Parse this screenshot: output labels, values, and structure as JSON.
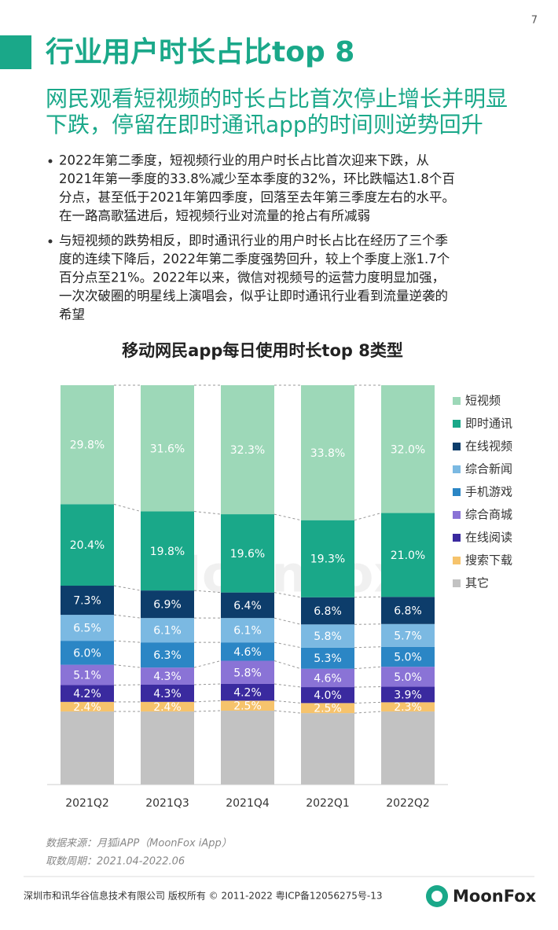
{
  "page_number": "7",
  "header": {
    "title": "行业用户时长占比top 8",
    "subtitle": [
      "网民观看短视频的时长占比首次停止增长并明显",
      "下跌，停留在即时通讯app的时间则逆势回升"
    ]
  },
  "bullets": [
    [
      "2022年第二季度，短视频行业的用户时长占比首次迎来下跌，从",
      "2021年第一季度的33.8%减少至本季度的32%，环比跌幅达1.8个百",
      "分点，甚至低于2021年第四季度，回落至去年第三季度左右的水平。",
      "在一路高歌猛进后，短视频行业对流量的抢占有所减弱"
    ],
    [
      "与短视频的跌势相反，即时通讯行业的用户时长占比在经历了三个季",
      "度的连续下降后，2022年第二季度强势回升，较上个季度上涨1.7个",
      "百分点至21%。2022年以来，微信对视频号的运营力度明显加强，",
      "一次次破圈的明星线上演唱会，似乎让即时通讯行业看到流量逆袭的",
      "希望"
    ]
  ],
  "chart_data": {
    "type": "stacked-bar",
    "title": "移动网民app每日使用时长top 8类型",
    "categories": [
      "2021Q2",
      "2021Q3",
      "2021Q4",
      "2022Q1",
      "2022Q2"
    ],
    "watermark": "MoonFox",
    "series": [
      {
        "name": "短视频",
        "color": "#9dd8b8",
        "values": [
          29.8,
          31.6,
          32.3,
          33.8,
          32.0
        ],
        "value_labels": [
          "29.8%",
          "31.6%",
          "32.3%",
          "33.8%",
          "32.0%"
        ]
      },
      {
        "name": "即时通讯",
        "color": "#1aa889",
        "values": [
          20.4,
          19.8,
          19.6,
          19.3,
          21.0
        ],
        "value_labels": [
          "20.4%",
          "19.8%",
          "19.6%",
          "19.3%",
          "21.0%"
        ]
      },
      {
        "name": "在线视频",
        "color": "#0d3d6b",
        "values": [
          7.3,
          6.9,
          6.4,
          6.8,
          6.8
        ],
        "value_labels": [
          "7.3%",
          "6.9%",
          "6.4%",
          "6.8%",
          "6.8%"
        ]
      },
      {
        "name": "综合新闻",
        "color": "#7bb9e2",
        "values": [
          6.5,
          6.1,
          6.1,
          5.8,
          5.7
        ],
        "value_labels": [
          "6.5%",
          "6.1%",
          "6.1%",
          "5.8%",
          "5.7%"
        ]
      },
      {
        "name": "手机游戏",
        "color": "#2b86c5",
        "values": [
          6.0,
          6.3,
          4.6,
          5.3,
          5.0
        ],
        "value_labels": [
          "6.0%",
          "6.3%",
          "4.6%",
          "5.3%",
          "5.0%"
        ]
      },
      {
        "name": "综合商城",
        "color": "#8a73d6",
        "values": [
          5.1,
          4.3,
          5.8,
          4.6,
          5.0
        ],
        "value_labels": [
          "5.1%",
          "4.3%",
          "5.8%",
          "4.6%",
          "5.0%"
        ]
      },
      {
        "name": "在线阅读",
        "color": "#3a2a9f",
        "values": [
          4.2,
          4.3,
          4.2,
          4.0,
          3.9
        ],
        "value_labels": [
          "4.2%",
          "4.3%",
          "4.2%",
          "4.0%",
          "3.9%"
        ]
      },
      {
        "name": "搜索下载",
        "color": "#f6c36c",
        "values": [
          2.4,
          2.4,
          2.5,
          2.5,
          2.3
        ],
        "value_labels": [
          "2.4%",
          "2.4%",
          "2.5%",
          "2.5%",
          "2.3%"
        ]
      },
      {
        "name": "其它",
        "color": "#c2c2c2",
        "values": [
          18.3,
          18.3,
          18.5,
          17.9,
          18.3
        ]
      }
    ]
  },
  "source": [
    "数据来源：月狐iAPP（MoonFox iApp）",
    "取数周期：2021.04-2022.06"
  ],
  "footer": {
    "copyright": "深圳市和讯华谷信息技术有限公司 版权所有 © 2011-2022 粤ICP备12056275号-13",
    "logo": "MoonFox"
  }
}
